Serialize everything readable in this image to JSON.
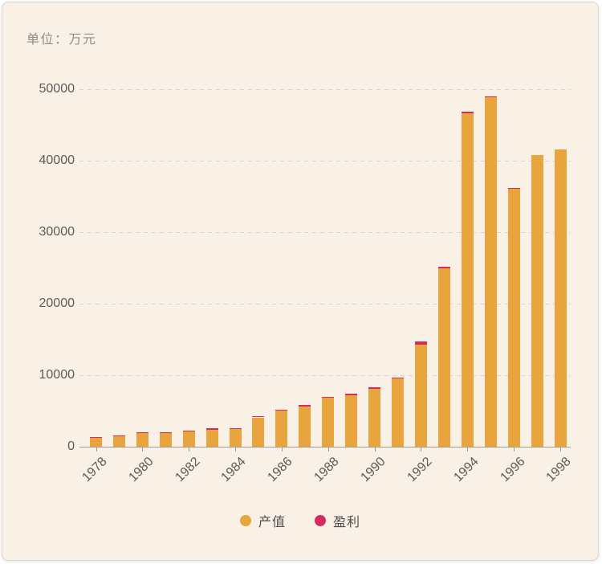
{
  "title": "单位：万元",
  "chart_data": {
    "type": "bar",
    "stacked": true,
    "title": "单位：万元",
    "x": [
      1978,
      1979,
      1980,
      1981,
      1982,
      1983,
      1984,
      1985,
      1986,
      1987,
      1988,
      1989,
      1990,
      1991,
      1992,
      1993,
      1994,
      1995,
      1996,
      1997,
      1998
    ],
    "x_labels": [
      "1978",
      "1980",
      "1982",
      "1984",
      "1986",
      "1988",
      "1990",
      "1992",
      "1994",
      "1996",
      "1998"
    ],
    "series": [
      {
        "name": "产值",
        "key": "output",
        "color": "#e8a53d",
        "values": [
          1350,
          1550,
          1900,
          1900,
          2150,
          2400,
          2450,
          4100,
          5050,
          5630,
          6820,
          7210,
          8100,
          9530,
          14250,
          24900,
          46630,
          48830,
          36030,
          40800,
          41600
        ]
      },
      {
        "name": "盈利",
        "key": "profit",
        "color": "#d52b5e",
        "values": [
          50,
          50,
          100,
          100,
          150,
          200,
          150,
          200,
          150,
          170,
          180,
          190,
          200,
          170,
          450,
          300,
          170,
          170,
          170,
          0,
          0
        ]
      }
    ],
    "ylim": [
      0,
      50000
    ],
    "y_ticks": [
      0,
      10000,
      20000,
      30000,
      40000,
      50000
    ],
    "grid": "horizontal-dashed",
    "legend_position": "bottom"
  },
  "colors": {
    "background": "#f9f1e6",
    "axis": "#a29d94",
    "gridline": "#d9d4c9",
    "tick_label": "#5b5b5b",
    "title_text": "#8f8b83"
  }
}
